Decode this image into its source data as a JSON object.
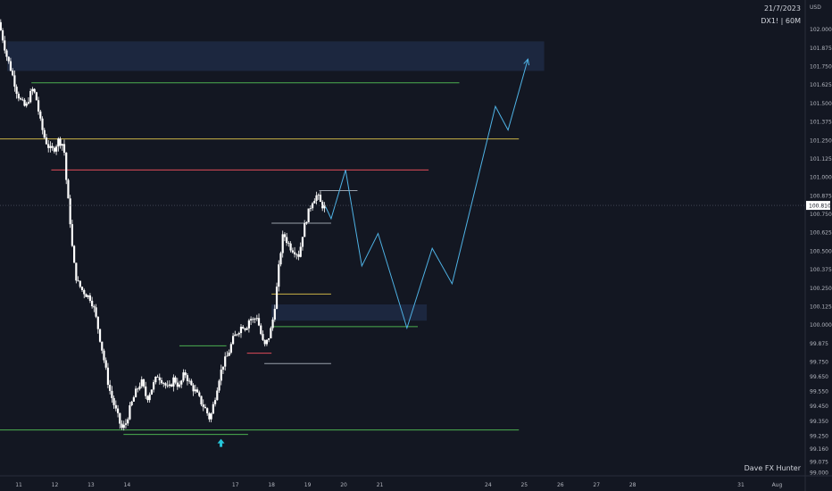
{
  "header": {
    "date": "21/7/2023",
    "symbol_timeframe": "DX1! | 60M",
    "currency": "USD"
  },
  "watermark": "Dave FX Hunter",
  "colors": {
    "background": "#131722",
    "up_candle": "#ffffff",
    "down_candle": "#ffffff",
    "projection": "#4fb3e6",
    "green_level": "#4caf50",
    "red_level": "#e04b5a",
    "yellow_level": "#c9b347",
    "white_level": "#9aa0ab",
    "zone_fill": "#1e2a44",
    "arrow": "#26c6da"
  },
  "chart_data": {
    "type": "candlestick",
    "x_tick_labels": [
      {
        "label": "11",
        "day": 11
      },
      {
        "label": "12",
        "day": 12
      },
      {
        "label": "13",
        "day": 13
      },
      {
        "label": "14",
        "day": 14
      },
      {
        "label": "17",
        "day": 17
      },
      {
        "label": "18",
        "day": 18
      },
      {
        "label": "19",
        "day": 19
      },
      {
        "label": "20",
        "day": 20
      },
      {
        "label": "21",
        "day": 21
      },
      {
        "label": "24",
        "day": 24
      },
      {
        "label": "25",
        "day": 25
      },
      {
        "label": "26",
        "day": 26
      },
      {
        "label": "27",
        "day": 27
      },
      {
        "label": "28",
        "day": 28
      },
      {
        "label": "31",
        "day": 31
      },
      {
        "label": "Aug",
        "day": 32
      }
    ],
    "y_ticks": [
      "102.125",
      "102.000",
      "101.875",
      "101.750",
      "101.625",
      "101.500",
      "101.375",
      "101.250",
      "101.125",
      "101.000",
      "100.875",
      "100.750",
      "100.625",
      "100.500",
      "100.375",
      "100.250",
      "100.125",
      "100.000",
      "99.875",
      "99.750",
      "99.650",
      "99.550",
      "99.450",
      "99.350",
      "99.250",
      "99.160",
      "99.075",
      "99.000"
    ],
    "ylim": [
      98.98,
      102.2
    ],
    "xlim": [
      10.48,
      32.78
    ],
    "current_price": "100.810",
    "current_price_value": 100.81,
    "price_path": [
      [
        10.5,
        102.05
      ],
      [
        10.6,
        101.95
      ],
      [
        10.72,
        101.82
      ],
      [
        10.85,
        101.72
      ],
      [
        11.0,
        101.58
      ],
      [
        11.1,
        101.52
      ],
      [
        11.25,
        101.47
      ],
      [
        11.35,
        101.55
      ],
      [
        11.45,
        101.6
      ],
      [
        11.55,
        101.52
      ],
      [
        11.65,
        101.38
      ],
      [
        11.75,
        101.28
      ],
      [
        11.85,
        101.22
      ],
      [
        11.95,
        101.18
      ],
      [
        12.05,
        101.2
      ],
      [
        12.15,
        101.25
      ],
      [
        12.3,
        101.22
      ],
      [
        12.38,
        100.95
      ],
      [
        12.48,
        100.7
      ],
      [
        12.56,
        100.45
      ],
      [
        12.66,
        100.3
      ],
      [
        12.8,
        100.24
      ],
      [
        12.95,
        100.2
      ],
      [
        13.05,
        100.18
      ],
      [
        13.15,
        100.1
      ],
      [
        13.25,
        99.98
      ],
      [
        13.35,
        99.85
      ],
      [
        13.45,
        99.72
      ],
      [
        13.55,
        99.58
      ],
      [
        13.68,
        99.47
      ],
      [
        13.8,
        99.38
      ],
      [
        13.9,
        99.3
      ],
      [
        14.0,
        99.32
      ],
      [
        14.15,
        99.45
      ],
      [
        14.3,
        99.55
      ],
      [
        14.45,
        99.62
      ],
      [
        14.6,
        99.5
      ],
      [
        14.75,
        99.58
      ],
      [
        14.9,
        99.66
      ],
      [
        15.05,
        99.62
      ],
      [
        15.2,
        99.56
      ],
      [
        15.35,
        99.64
      ],
      [
        15.5,
        99.58
      ],
      [
        15.65,
        99.68
      ],
      [
        15.8,
        99.6
      ],
      [
        15.95,
        99.55
      ],
      [
        16.1,
        99.48
      ],
      [
        16.25,
        99.42
      ],
      [
        16.35,
        99.36
      ],
      [
        16.48,
        99.5
      ],
      [
        16.6,
        99.64
      ],
      [
        16.72,
        99.74
      ],
      [
        16.85,
        99.8
      ],
      [
        16.98,
        99.9
      ],
      [
        17.1,
        99.95
      ],
      [
        17.25,
        100.0
      ],
      [
        17.35,
        99.98
      ],
      [
        17.45,
        100.05
      ],
      [
        17.55,
        100.03
      ],
      [
        17.65,
        100.06
      ],
      [
        17.75,
        99.95
      ],
      [
        17.85,
        99.85
      ],
      [
        17.95,
        99.9
      ],
      [
        18.02,
        99.95
      ],
      [
        18.1,
        100.05
      ],
      [
        18.18,
        100.2
      ],
      [
        18.28,
        100.45
      ],
      [
        18.38,
        100.62
      ],
      [
        18.5,
        100.56
      ],
      [
        18.6,
        100.52
      ],
      [
        18.72,
        100.5
      ],
      [
        18.82,
        100.47
      ],
      [
        18.9,
        100.6
      ],
      [
        19.0,
        100.7
      ],
      [
        19.1,
        100.78
      ],
      [
        19.2,
        100.85
      ],
      [
        19.32,
        100.88
      ],
      [
        19.42,
        100.82
      ],
      [
        19.5,
        100.8
      ]
    ],
    "projection_path": [
      [
        19.5,
        100.8
      ],
      [
        19.65,
        100.72
      ],
      [
        20.05,
        101.05
      ],
      [
        20.5,
        100.4
      ],
      [
        20.95,
        100.62
      ],
      [
        21.75,
        99.98
      ],
      [
        22.45,
        100.52
      ],
      [
        23.0,
        100.28
      ],
      [
        24.2,
        101.48
      ],
      [
        24.55,
        101.32
      ],
      [
        25.1,
        101.8
      ]
    ],
    "levels": [
      {
        "name": "green-level-upper",
        "color_key": "green_level",
        "y": 101.64,
        "x1": 11.35,
        "x2": 23.2
      },
      {
        "name": "yellow-level-upper",
        "color_key": "yellow_level",
        "y": 101.26,
        "x1": 10.48,
        "x2": 24.85
      },
      {
        "name": "red-level-upper",
        "color_key": "red_level",
        "y": 101.05,
        "x1": 11.9,
        "x2": 22.35
      },
      {
        "name": "white-level-upper",
        "color_key": "white_level",
        "y": 100.91,
        "x1": 19.32,
        "x2": 20.38
      },
      {
        "name": "white-level-mid",
        "color_key": "white_level",
        "y": 100.69,
        "x1": 18.0,
        "x2": 19.65
      },
      {
        "name": "yellow-level-lower",
        "color_key": "yellow_level",
        "y": 100.21,
        "x1": 18.0,
        "x2": 19.65
      },
      {
        "name": "green-level-mid",
        "color_key": "green_level",
        "y": 99.99,
        "x1": 18.0,
        "x2": 22.05
      },
      {
        "name": "green-level-swing",
        "color_key": "green_level",
        "y": 99.86,
        "x1": 15.45,
        "x2": 16.75
      },
      {
        "name": "red-level-lower",
        "color_key": "red_level",
        "y": 99.81,
        "x1": 17.32,
        "x2": 18.0
      },
      {
        "name": "white-level-lower",
        "color_key": "white_level",
        "y": 99.74,
        "x1": 17.8,
        "x2": 19.65
      },
      {
        "name": "green-level-low",
        "color_key": "green_level",
        "y": 99.26,
        "x1": 13.9,
        "x2": 17.35
      },
      {
        "name": "green-level-bottom",
        "color_key": "green_level",
        "y": 99.29,
        "x1": 10.48,
        "x2": 24.85
      }
    ],
    "zones": [
      {
        "name": "supply-zone",
        "y1": 101.72,
        "y2": 101.92,
        "x1": 10.68,
        "x2": 25.55
      },
      {
        "name": "demand-zone",
        "y1": 100.03,
        "y2": 100.14,
        "x1": 18.0,
        "x2": 22.3
      }
    ],
    "arrow_marker": {
      "x": 16.6,
      "y": 99.2
    },
    "grid": false
  }
}
